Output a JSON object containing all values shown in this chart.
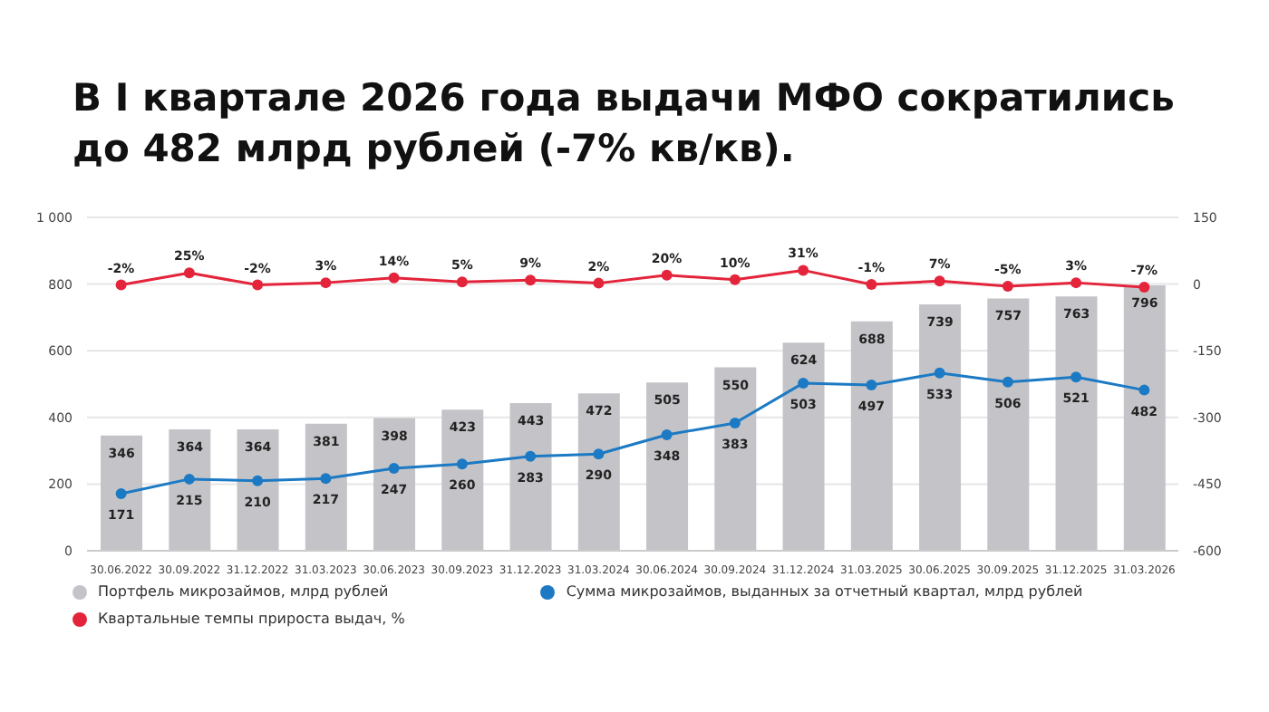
{
  "chart_data": {
    "type": "bar",
    "title": "В I квартале 2026 года выдачи МФО сократились до 482 млрд рублей (-7% кв/кв).",
    "categories": [
      "30.06.2022",
      "30.09.2022",
      "31.12.2022",
      "31.03.2023",
      "30.06.2023",
      "30.09.2023",
      "31.12.2023",
      "31.03.2024",
      "30.06.2024",
      "30.09.2024",
      "31.12.2024",
      "31.03.2025",
      "30.06.2025",
      "30.09.2025",
      "31.12.2025",
      "31.03.2026"
    ],
    "series": [
      {
        "name": "Портфель микрозаймов, млрд рублей",
        "color": "#c4c4c8",
        "values": [
          346,
          364,
          364,
          381,
          398,
          423,
          443,
          472,
          505,
          550,
          624,
          688,
          739,
          757,
          763,
          796
        ],
        "value_labels": [
          "346",
          "364",
          "364",
          "381",
          "398",
          "423",
          "443",
          "472",
          "505",
          "550",
          "624",
          "688",
          "739",
          "757",
          "763",
          "796"
        ]
      },
      {
        "name": "Сумма микрозаймов, выданных за отчетный квартал, млрд рублей",
        "type": "line",
        "color": "#1c7ac4",
        "values": [
          171,
          215,
          210,
          217,
          247,
          260,
          283,
          290,
          348,
          383,
          503,
          497,
          533,
          506,
          521,
          482
        ],
        "value_labels": [
          "171",
          "215",
          "210",
          "217",
          "247",
          "260",
          "283",
          "290",
          "348",
          "383",
          "503",
          "497",
          "533",
          "506",
          "521",
          "482"
        ]
      },
      {
        "name": "Квартальные темпы прироста выдач, %",
        "type": "line",
        "axis": "y2",
        "color": "#e3243b",
        "values": [
          -2,
          25,
          -2,
          3,
          14,
          5,
          9,
          2,
          20,
          10,
          31,
          -1,
          7,
          -5,
          3,
          -7
        ],
        "value_labels": [
          "-2%",
          "25%",
          "-2%",
          "3%",
          "14%",
          "5%",
          "9%",
          "2%",
          "20%",
          "10%",
          "31%",
          "-1%",
          "7%",
          "-5%",
          "3%",
          "-7%"
        ]
      }
    ],
    "ylim": [
      0,
      1000
    ],
    "yticks": [
      0,
      200,
      400,
      600,
      800,
      {
        "value": 1000,
        "label": "1 000"
      }
    ],
    "y2lim": [
      -600,
      150
    ],
    "y2ticks": [
      -600,
      -450,
      -300,
      -150,
      0,
      150
    ],
    "grid": "y",
    "legend": "bottom",
    "marker": "circle",
    "line_style": "solid"
  }
}
